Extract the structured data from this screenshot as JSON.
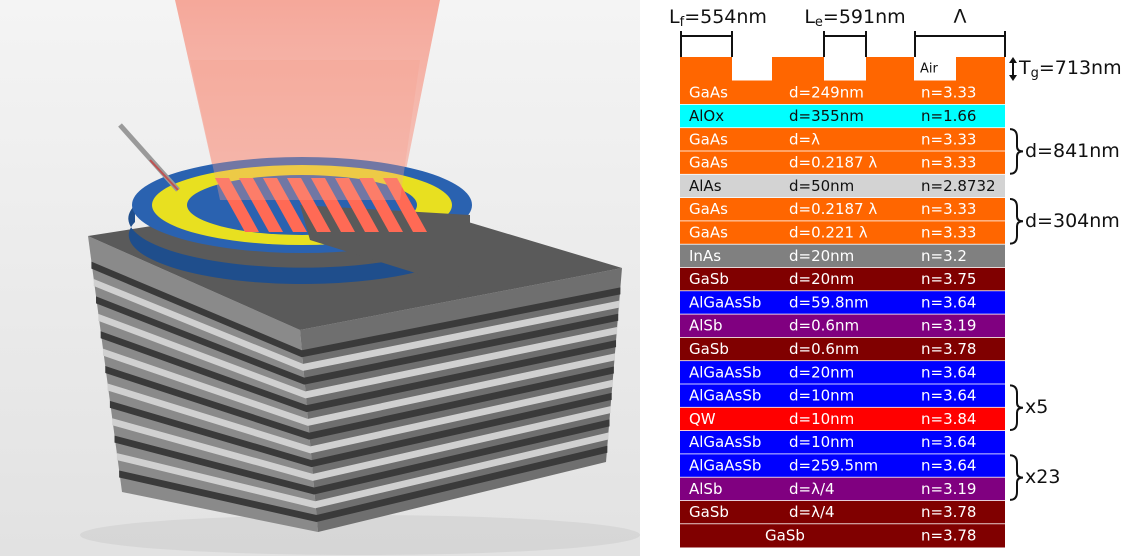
{
  "figure": {
    "layers": [
      {
        "material": "GaAs",
        "thickness": "d=249nm",
        "index": "n=3.33",
        "color": "#ff6600"
      },
      {
        "material": "AlOx",
        "thickness": "d=355nm",
        "index": "n=1.66",
        "color": "#00ffff"
      },
      {
        "material": "GaAs",
        "thickness": "d=λ",
        "index": "n=3.33",
        "color": "#ff6600"
      },
      {
        "material": "GaAs",
        "thickness": "d=0.2187 λ",
        "index": "n=3.33",
        "color": "#ff6600"
      },
      {
        "material": "AlAs",
        "thickness": "d=50nm",
        "index": "n=2.8732",
        "color": "#d3d3d3"
      },
      {
        "material": "GaAs",
        "thickness": "d=0.2187 λ",
        "index": "n=3.33",
        "color": "#ff6600"
      },
      {
        "material": "GaAs",
        "thickness": "d=0.221 λ",
        "index": "n=3.33",
        "color": "#ff6600"
      },
      {
        "material": "InAs",
        "thickness": "d=20nm",
        "index": "n=3.2",
        "color": "#808080"
      },
      {
        "material": "GaSb",
        "thickness": "d=20nm",
        "index": "n=3.75",
        "color": "#800000"
      },
      {
        "material": "AlGaAsSb",
        "thickness": "d=59.8nm",
        "index": "n=3.64",
        "color": "#0000ff"
      },
      {
        "material": "AlSb",
        "thickness": "d=0.6nm",
        "index": "n=3.19",
        "color": "#800080"
      },
      {
        "material": "GaSb",
        "thickness": "d=0.6nm",
        "index": "n=3.78",
        "color": "#800000"
      },
      {
        "material": "AlGaAsSb",
        "thickness": "d=20nm",
        "index": "n=3.64",
        "color": "#0000ff"
      },
      {
        "material": "AlGaAsSb",
        "thickness": "d=10nm",
        "index": "n=3.64",
        "color": "#0000ff"
      },
      {
        "material": "QW",
        "thickness": "d=10nm",
        "index": "n=3.84",
        "color": "#ff0000"
      },
      {
        "material": "AlGaAsSb",
        "thickness": "d=10nm",
        "index": "n=3.64",
        "color": "#0000ff"
      },
      {
        "material": "AlGaAsSb",
        "thickness": "d=259.5nm",
        "index": "n=3.64",
        "color": "#0000ff"
      },
      {
        "material": "AlSb",
        "thickness": "d=λ/4",
        "index": "n=3.19",
        "color": "#800080"
      },
      {
        "material": "GaSb",
        "thickness": "d=λ/4",
        "index": "n=3.78",
        "color": "#800000"
      }
    ],
    "substrate": {
      "material": "GaSb",
      "index": "n=3.78",
      "color": "#800000"
    },
    "grating": {
      "air_label": "Air",
      "fill_width": {
        "symbol": "L",
        "subscript": "f",
        "text": "=554nm"
      },
      "etch_width": {
        "symbol": "L",
        "subscript": "e",
        "text": "=591nm"
      },
      "period": "Λ",
      "height": {
        "symbol": "T",
        "subscript": "g",
        "text": "=713nm"
      }
    },
    "braces": [
      "d=841nm",
      "d=304nm",
      "x5",
      "x23"
    ]
  }
}
